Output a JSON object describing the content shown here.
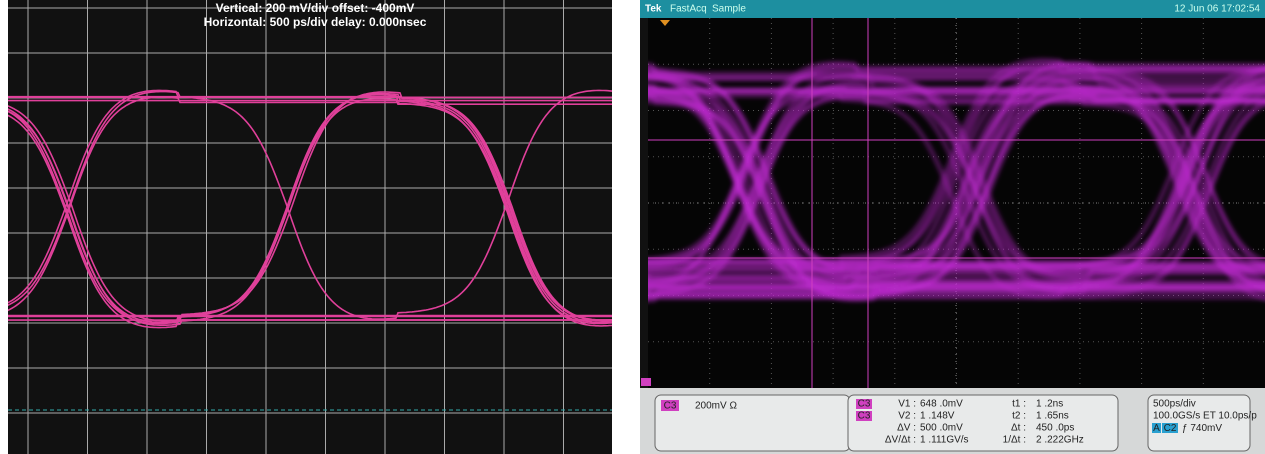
{
  "left_scope": {
    "header": [
      "Vertical: 200 mV/div  offset: -400mV",
      "Horizontal: 500 ps/div  delay: 0.000nsec"
    ]
  },
  "right_scope": {
    "brand": "Tek",
    "mode": "FastAcq",
    "acquisition": "Sample",
    "timestamp": "12 Jun 06 17:02:54",
    "channel": {
      "label": "C3",
      "scale": "200mV Ω"
    },
    "voltage_cursors": [
      {
        "channel": "C3",
        "name": "V1 :",
        "value": "648 .0mV"
      },
      {
        "channel": "C3",
        "name": "V2 :",
        "value": "1 .148V"
      },
      {
        "name": "ΔV :",
        "value": "500 .0mV"
      },
      {
        "name": "ΔV/Δt :",
        "value": "1 .111GV/s"
      }
    ],
    "time_cursors": [
      {
        "name": "t1 :",
        "value": "1 .2ns"
      },
      {
        "name": "t2 :",
        "value": "1 .65ns"
      },
      {
        "name": "Δt :",
        "value": "450 .0ps"
      },
      {
        "name": "1/Δt :",
        "value": "2 .222GHz"
      }
    ],
    "timebase": {
      "scale": "500ps/div",
      "rate": "100.0GS/s ET 10.0ps/p",
      "trigger_label": "A",
      "trigger_source": "C2",
      "trigger": "ƒ 740mV"
    }
  }
}
